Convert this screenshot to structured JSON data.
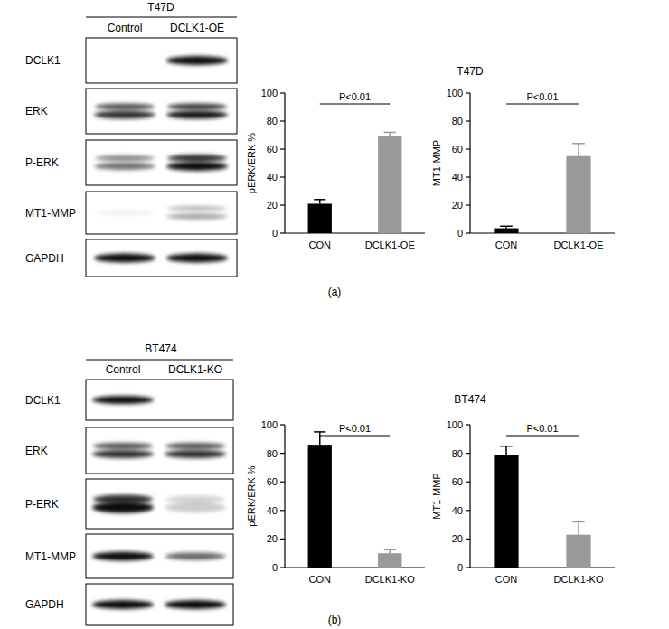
{
  "chart_data": [
    {
      "type": "bar",
      "title": "T47D",
      "y_label": "pERK/ERK %",
      "categories": [
        "CON",
        "DCLK1-OE"
      ],
      "values": [
        21,
        69
      ],
      "errors": [
        3,
        3
      ],
      "colors": [
        "#000000",
        "#999999"
      ],
      "ylim": [
        0,
        100
      ],
      "yticks": [
        0,
        20,
        40,
        60,
        80,
        100
      ],
      "annotations": [
        "P<0.01"
      ]
    },
    {
      "type": "bar",
      "y_label": "MT1-MMP",
      "categories": [
        "CON",
        "DCLK1-OE"
      ],
      "values": [
        3.5,
        55
      ],
      "errors": [
        1.5,
        9
      ],
      "colors": [
        "#000000",
        "#999999"
      ],
      "ylim": [
        0,
        100
      ],
      "yticks": [
        0,
        20,
        40,
        60,
        80,
        100
      ],
      "annotations": [
        "P<0.01"
      ]
    },
    {
      "type": "bar",
      "title": "BT474",
      "y_label": "pERK/ERK %",
      "categories": [
        "CON",
        "DCLK1-KO"
      ],
      "values": [
        86,
        10
      ],
      "errors": [
        9,
        2.5
      ],
      "colors": [
        "#000000",
        "#999999"
      ],
      "ylim": [
        0,
        100
      ],
      "yticks": [
        0,
        20,
        40,
        60,
        80,
        100
      ],
      "annotations": [
        "P<0.01"
      ]
    },
    {
      "type": "bar",
      "y_label": "MT1-MMP",
      "categories": [
        "CON",
        "DCLK1-KO"
      ],
      "values": [
        79,
        23
      ],
      "errors": [
        6,
        9
      ],
      "colors": [
        "#000000",
        "#999999"
      ],
      "ylim": [
        0,
        100
      ],
      "yticks": [
        0,
        20,
        40,
        60,
        80,
        100
      ],
      "annotations": [
        "P<0.01"
      ]
    }
  ],
  "blots": [
    {
      "header": "T47D",
      "lanes": [
        "Control",
        "DCLK1-OE"
      ],
      "rows": [
        "DCLK1",
        "ERK",
        "P-ERK",
        "MT1-MMP",
        "GAPDH"
      ]
    },
    {
      "header": "BT474",
      "lanes": [
        "Control",
        "DCLK1-KO"
      ],
      "rows": [
        "DCLK1",
        "ERK",
        "P-ERK",
        "MT1-MMP",
        "GAPDH"
      ]
    }
  ],
  "panel_labels": [
    "(a)",
    "(b)"
  ]
}
